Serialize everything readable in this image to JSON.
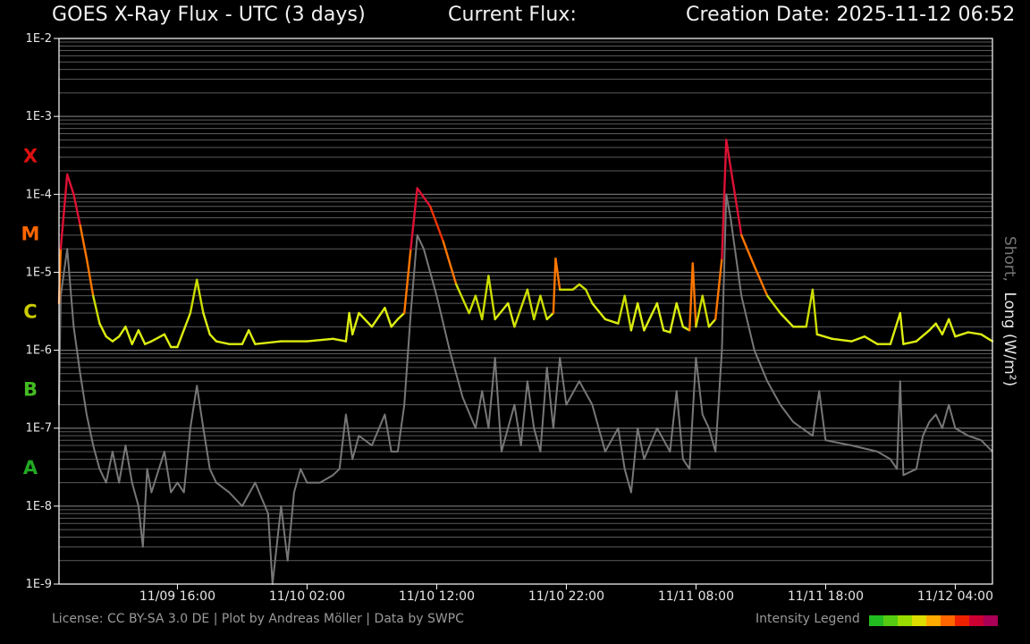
{
  "header": {
    "title": "GOES X-Ray Flux - UTC (3 days)",
    "current_flux_label": "Current Flux:",
    "creation_date": "Creation Date: 2025-11-12 06:52"
  },
  "footer": {
    "license": "License: CC BY-SA 3.0 DE | Plot by Andreas Möller | Data by SWPC",
    "legend_label": "Intensity Legend",
    "legend_colors": [
      "#22bb22",
      "#55cc11",
      "#99dd00",
      "#dddd00",
      "#ffaa00",
      "#ff6600",
      "#ee2200",
      "#cc0033",
      "#aa0055"
    ]
  },
  "chart_data": {
    "type": "line",
    "title": "GOES X-Ray Flux - UTC (3 days)",
    "y_scale": "log",
    "ylim": [
      1e-09,
      0.01
    ],
    "ylabel_short": "Short,",
    "ylabel_long": "Long (W/m²)",
    "grid": true,
    "y_ticks": [
      "1E-9",
      "1E-8",
      "1E-7",
      "1E-6",
      "1E-5",
      "1E-4",
      "1E-3",
      "1E-2"
    ],
    "class_labels": [
      {
        "label": "A",
        "flux": 3.2e-08,
        "color": "#22aa22"
      },
      {
        "label": "B",
        "flux": 3.2e-07,
        "color": "#44bb22"
      },
      {
        "label": "C",
        "flux": 3.2e-06,
        "color": "#cccc00"
      },
      {
        "label": "M",
        "flux": 3.2e-05,
        "color": "#ff6600"
      },
      {
        "label": "X",
        "flux": 0.00032,
        "color": "#dd1111"
      }
    ],
    "xlim": [
      "2025-11-09 06:52",
      "2025-11-12 06:52"
    ],
    "x_ticks": [
      {
        "label": "11/09 16:00",
        "time": "2025-11-09 16:00"
      },
      {
        "label": "11/10 02:00",
        "time": "2025-11-10 02:00"
      },
      {
        "label": "11/10 12:00",
        "time": "2025-11-10 12:00"
      },
      {
        "label": "11/10 22:00",
        "time": "2025-11-10 22:00"
      },
      {
        "label": "11/11 08:00",
        "time": "2025-11-11 08:00"
      },
      {
        "label": "11/11 18:00",
        "time": "2025-11-11 18:00"
      },
      {
        "label": "11/12 04:00",
        "time": "2025-11-12 04:00"
      }
    ],
    "series": [
      {
        "color": "#777777",
        "points": [
          [
            "2025-11-09 06:52",
            2e-07
          ],
          [
            "2025-11-09 07:00",
            5e-06
          ],
          [
            "2025-11-09 07:30",
            2e-05
          ],
          [
            "2025-11-09 08:00",
            2e-06
          ],
          [
            "2025-11-09 08:30",
            5e-07
          ],
          [
            "2025-11-09 09:00",
            1.5e-07
          ],
          [
            "2025-11-09 09:30",
            6e-08
          ],
          [
            "2025-11-09 10:00",
            3e-08
          ],
          [
            "2025-11-09 10:30",
            2e-08
          ],
          [
            "2025-11-09 11:00",
            5e-08
          ],
          [
            "2025-11-09 11:30",
            2e-08
          ],
          [
            "2025-11-09 12:00",
            6e-08
          ],
          [
            "2025-11-09 12:30",
            2e-08
          ],
          [
            "2025-11-09 13:00",
            1e-08
          ],
          [
            "2025-11-09 13:20",
            3e-09
          ],
          [
            "2025-11-09 13:40",
            3e-08
          ],
          [
            "2025-11-09 14:00",
            1.5e-08
          ],
          [
            "2025-11-09 15:00",
            5e-08
          ],
          [
            "2025-11-09 15:30",
            1.5e-08
          ],
          [
            "2025-11-09 16:00",
            2e-08
          ],
          [
            "2025-11-09 16:30",
            1.5e-08
          ],
          [
            "2025-11-09 17:00",
            1e-07
          ],
          [
            "2025-11-09 17:30",
            3.5e-07
          ],
          [
            "2025-11-09 18:00",
            1e-07
          ],
          [
            "2025-11-09 18:30",
            3e-08
          ],
          [
            "2025-11-09 19:00",
            2e-08
          ],
          [
            "2025-11-09 20:00",
            1.5e-08
          ],
          [
            "2025-11-09 21:00",
            1e-08
          ],
          [
            "2025-11-09 22:00",
            2e-08
          ],
          [
            "2025-11-09 23:00",
            8e-09
          ],
          [
            "2025-11-09 23:20",
            1e-09
          ],
          [
            "2025-11-10 00:00",
            1e-08
          ],
          [
            "2025-11-10 00:30",
            2e-09
          ],
          [
            "2025-11-10 01:00",
            1.5e-08
          ],
          [
            "2025-11-10 01:30",
            3e-08
          ],
          [
            "2025-11-10 02:00",
            2e-08
          ],
          [
            "2025-11-10 03:00",
            2e-08
          ],
          [
            "2025-11-10 04:00",
            2.5e-08
          ],
          [
            "2025-11-10 04:30",
            3e-08
          ],
          [
            "2025-11-10 05:00",
            1.5e-07
          ],
          [
            "2025-11-10 05:30",
            4e-08
          ],
          [
            "2025-11-10 06:00",
            8e-08
          ],
          [
            "2025-11-10 07:00",
            6e-08
          ],
          [
            "2025-11-10 08:00",
            1.5e-07
          ],
          [
            "2025-11-10 08:30",
            5e-08
          ],
          [
            "2025-11-10 09:00",
            5e-08
          ],
          [
            "2025-11-10 09:30",
            2e-07
          ],
          [
            "2025-11-10 10:00",
            3e-06
          ],
          [
            "2025-11-10 10:30",
            3e-05
          ],
          [
            "2025-11-10 11:00",
            2e-05
          ],
          [
            "2025-11-10 12:00",
            5e-06
          ],
          [
            "2025-11-10 13:00",
            1e-06
          ],
          [
            "2025-11-10 14:00",
            2.5e-07
          ],
          [
            "2025-11-10 15:00",
            1e-07
          ],
          [
            "2025-11-10 15:30",
            3e-07
          ],
          [
            "2025-11-10 16:00",
            1e-07
          ],
          [
            "2025-11-10 16:30",
            8e-07
          ],
          [
            "2025-11-10 17:00",
            5e-08
          ],
          [
            "2025-11-10 18:00",
            2e-07
          ],
          [
            "2025-11-10 18:30",
            6e-08
          ],
          [
            "2025-11-10 19:00",
            4e-07
          ],
          [
            "2025-11-10 19:30",
            1e-07
          ],
          [
            "2025-11-10 20:00",
            5e-08
          ],
          [
            "2025-11-10 20:30",
            6e-07
          ],
          [
            "2025-11-10 21:00",
            1e-07
          ],
          [
            "2025-11-10 21:30",
            8e-07
          ],
          [
            "2025-11-10 22:00",
            2e-07
          ],
          [
            "2025-11-10 23:00",
            4e-07
          ],
          [
            "2025-11-11 00:00",
            2e-07
          ],
          [
            "2025-11-11 01:00",
            5e-08
          ],
          [
            "2025-11-11 02:00",
            1e-07
          ],
          [
            "2025-11-11 02:30",
            3e-08
          ],
          [
            "2025-11-11 03:00",
            1.5e-08
          ],
          [
            "2025-11-11 03:30",
            1e-07
          ],
          [
            "2025-11-11 04:00",
            4e-08
          ],
          [
            "2025-11-11 05:00",
            1e-07
          ],
          [
            "2025-11-11 06:00",
            5e-08
          ],
          [
            "2025-11-11 06:30",
            3e-07
          ],
          [
            "2025-11-11 07:00",
            4e-08
          ],
          [
            "2025-11-11 07:30",
            3e-08
          ],
          [
            "2025-11-11 08:00",
            8e-07
          ],
          [
            "2025-11-11 08:30",
            1.5e-07
          ],
          [
            "2025-11-11 09:00",
            1e-07
          ],
          [
            "2025-11-11 09:30",
            5e-08
          ],
          [
            "2025-11-11 10:00",
            1e-06
          ],
          [
            "2025-11-11 10:20",
            0.0001
          ],
          [
            "2025-11-11 10:40",
            5e-05
          ],
          [
            "2025-11-11 11:30",
            5e-06
          ],
          [
            "2025-11-11 12:30",
            1e-06
          ],
          [
            "2025-11-11 13:30",
            4e-07
          ],
          [
            "2025-11-11 14:30",
            2e-07
          ],
          [
            "2025-11-11 15:30",
            1.2e-07
          ],
          [
            "2025-11-11 17:00",
            8e-08
          ],
          [
            "2025-11-11 17:30",
            3e-07
          ],
          [
            "2025-11-11 18:00",
            7e-08
          ],
          [
            "2025-11-11 20:00",
            6e-08
          ],
          [
            "2025-11-11 22:00",
            5e-08
          ],
          [
            "2025-11-11 23:00",
            4e-08
          ],
          [
            "2025-11-11 23:30",
            3e-08
          ],
          [
            "2025-11-11 23:45",
            4e-07
          ],
          [
            "2025-11-12 00:00",
            2.5e-08
          ],
          [
            "2025-11-12 01:00",
            3e-08
          ],
          [
            "2025-11-12 01:30",
            8e-08
          ],
          [
            "2025-11-12 02:00",
            1.2e-07
          ],
          [
            "2025-11-12 02:30",
            1.5e-07
          ],
          [
            "2025-11-12 03:00",
            1e-07
          ],
          [
            "2025-11-12 03:30",
            2e-07
          ],
          [
            "2025-11-12 04:00",
            1e-07
          ],
          [
            "2025-11-12 05:00",
            8e-08
          ],
          [
            "2025-11-12 06:00",
            7e-08
          ],
          [
            "2025-11-12 06:52",
            5e-08
          ]
        ]
      },
      {
        "color_by_class": true,
        "points": [
          [
            "2025-11-09 06:52",
            4e-06
          ],
          [
            "2025-11-09 07:00",
            2e-05
          ],
          [
            "2025-11-09 07:30",
            0.00018
          ],
          [
            "2025-11-09 08:00",
            0.0001
          ],
          [
            "2025-11-09 08:30",
            4e-05
          ],
          [
            "2025-11-09 09:00",
            1.5e-05
          ],
          [
            "2025-11-09 09:30",
            5e-06
          ],
          [
            "2025-11-09 10:00",
            2.2e-06
          ],
          [
            "2025-11-09 10:30",
            1.5e-06
          ],
          [
            "2025-11-09 11:00",
            1.3e-06
          ],
          [
            "2025-11-09 11:30",
            1.5e-06
          ],
          [
            "2025-11-09 12:00",
            2e-06
          ],
          [
            "2025-11-09 12:30",
            1.2e-06
          ],
          [
            "2025-11-09 13:00",
            1.8e-06
          ],
          [
            "2025-11-09 13:30",
            1.2e-06
          ],
          [
            "2025-11-09 14:00",
            1.3e-06
          ],
          [
            "2025-11-09 15:00",
            1.6e-06
          ],
          [
            "2025-11-09 15:30",
            1.1e-06
          ],
          [
            "2025-11-09 16:00",
            1.1e-06
          ],
          [
            "2025-11-09 17:00",
            3e-06
          ],
          [
            "2025-11-09 17:30",
            8e-06
          ],
          [
            "2025-11-09 18:00",
            3e-06
          ],
          [
            "2025-11-09 18:30",
            1.6e-06
          ],
          [
            "2025-11-09 19:00",
            1.3e-06
          ],
          [
            "2025-11-09 20:00",
            1.2e-06
          ],
          [
            "2025-11-09 21:00",
            1.2e-06
          ],
          [
            "2025-11-09 21:30",
            1.8e-06
          ],
          [
            "2025-11-09 22:00",
            1.2e-06
          ],
          [
            "2025-11-10 00:00",
            1.3e-06
          ],
          [
            "2025-11-10 02:00",
            1.3e-06
          ],
          [
            "2025-11-10 04:00",
            1.4e-06
          ],
          [
            "2025-11-10 05:00",
            1.3e-06
          ],
          [
            "2025-11-10 05:15",
            3e-06
          ],
          [
            "2025-11-10 05:30",
            1.6e-06
          ],
          [
            "2025-11-10 06:00",
            3e-06
          ],
          [
            "2025-11-10 07:00",
            2e-06
          ],
          [
            "2025-11-10 08:00",
            3.5e-06
          ],
          [
            "2025-11-10 08:30",
            2e-06
          ],
          [
            "2025-11-10 09:00",
            2.5e-06
          ],
          [
            "2025-11-10 09:30",
            3e-06
          ],
          [
            "2025-11-10 10:00",
            2e-05
          ],
          [
            "2025-11-10 10:30",
            0.00012
          ],
          [
            "2025-11-10 11:30",
            7e-05
          ],
          [
            "2025-11-10 12:30",
            2.5e-05
          ],
          [
            "2025-11-10 13:30",
            7e-06
          ],
          [
            "2025-11-10 14:30",
            3e-06
          ],
          [
            "2025-11-10 15:00",
            5e-06
          ],
          [
            "2025-11-10 15:30",
            2.5e-06
          ],
          [
            "2025-11-10 16:00",
            9e-06
          ],
          [
            "2025-11-10 16:30",
            2.5e-06
          ],
          [
            "2025-11-10 17:30",
            4e-06
          ],
          [
            "2025-11-10 18:00",
            2e-06
          ],
          [
            "2025-11-10 19:00",
            6e-06
          ],
          [
            "2025-11-10 19:30",
            2.5e-06
          ],
          [
            "2025-11-10 20:00",
            5e-06
          ],
          [
            "2025-11-10 20:30",
            2.5e-06
          ],
          [
            "2025-11-10 21:00",
            3e-06
          ],
          [
            "2025-11-10 21:10",
            1.5e-05
          ],
          [
            "2025-11-10 21:30",
            6e-06
          ],
          [
            "2025-11-10 22:30",
            6e-06
          ],
          [
            "2025-11-10 23:00",
            7e-06
          ],
          [
            "2025-11-10 23:30",
            6e-06
          ],
          [
            "2025-11-11 00:00",
            4e-06
          ],
          [
            "2025-11-11 01:00",
            2.5e-06
          ],
          [
            "2025-11-11 02:00",
            2.2e-06
          ],
          [
            "2025-11-11 02:30",
            5e-06
          ],
          [
            "2025-11-11 03:00",
            1.8e-06
          ],
          [
            "2025-11-11 03:30",
            4e-06
          ],
          [
            "2025-11-11 04:00",
            1.8e-06
          ],
          [
            "2025-11-11 05:00",
            4e-06
          ],
          [
            "2025-11-11 05:30",
            1.8e-06
          ],
          [
            "2025-11-11 06:00",
            1.7e-06
          ],
          [
            "2025-11-11 06:30",
            4e-06
          ],
          [
            "2025-11-11 07:00",
            2e-06
          ],
          [
            "2025-11-11 07:30",
            1.8e-06
          ],
          [
            "2025-11-11 07:45",
            1.3e-05
          ],
          [
            "2025-11-11 08:00",
            2e-06
          ],
          [
            "2025-11-11 08:30",
            5e-06
          ],
          [
            "2025-11-11 09:00",
            2e-06
          ],
          [
            "2025-11-11 09:30",
            2.5e-06
          ],
          [
            "2025-11-11 10:00",
            1.5e-05
          ],
          [
            "2025-11-11 10:20",
            0.0005
          ],
          [
            "2025-11-11 10:50",
            0.00015
          ],
          [
            "2025-11-11 11:30",
            3e-05
          ],
          [
            "2025-11-11 12:30",
            1.2e-05
          ],
          [
            "2025-11-11 13:30",
            5e-06
          ],
          [
            "2025-11-11 14:30",
            3e-06
          ],
          [
            "2025-11-11 15:30",
            2e-06
          ],
          [
            "2025-11-11 16:30",
            2e-06
          ],
          [
            "2025-11-11 17:00",
            6e-06
          ],
          [
            "2025-11-11 17:20",
            1.6e-06
          ],
          [
            "2025-11-11 18:30",
            1.4e-06
          ],
          [
            "2025-11-11 20:00",
            1.3e-06
          ],
          [
            "2025-11-11 21:00",
            1.5e-06
          ],
          [
            "2025-11-11 22:00",
            1.2e-06
          ],
          [
            "2025-11-11 23:00",
            1.2e-06
          ],
          [
            "2025-11-11 23:45",
            3e-06
          ],
          [
            "2025-11-12 00:00",
            1.2e-06
          ],
          [
            "2025-11-12 01:00",
            1.3e-06
          ],
          [
            "2025-11-12 02:00",
            1.8e-06
          ],
          [
            "2025-11-12 02:30",
            2.2e-06
          ],
          [
            "2025-11-12 03:00",
            1.6e-06
          ],
          [
            "2025-11-12 03:30",
            2.5e-06
          ],
          [
            "2025-11-12 04:00",
            1.5e-06
          ],
          [
            "2025-11-12 05:00",
            1.7e-06
          ],
          [
            "2025-11-12 06:00",
            1.6e-06
          ],
          [
            "2025-11-12 06:52",
            1.3e-06
          ]
        ]
      }
    ]
  }
}
